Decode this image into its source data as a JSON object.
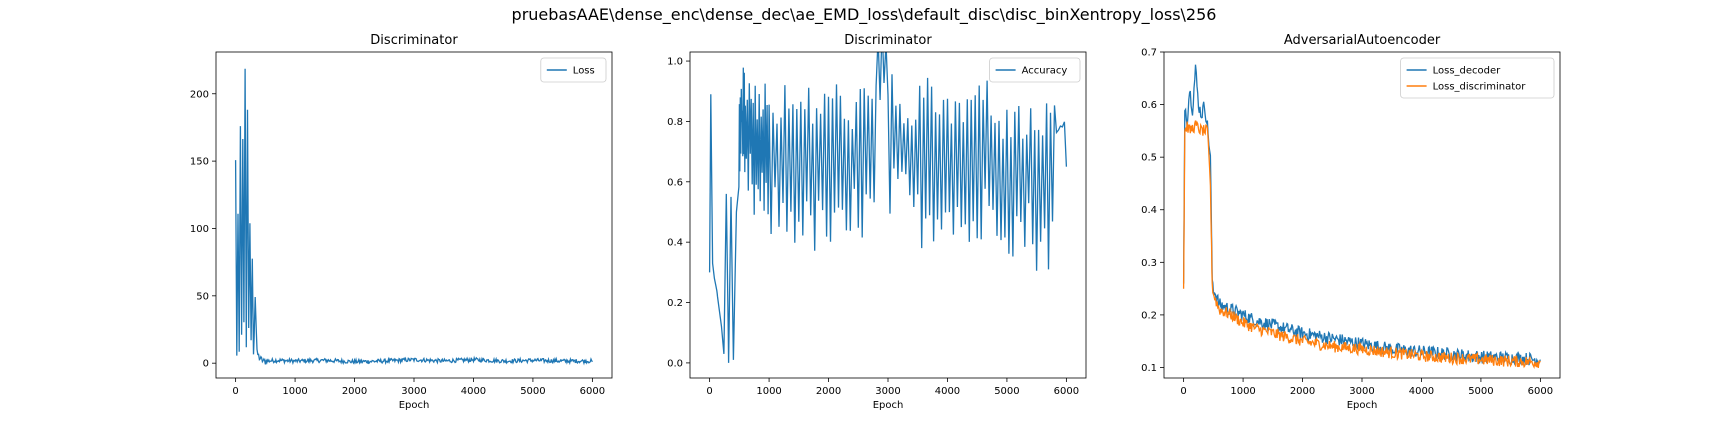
{
  "figure": {
    "suptitle": "pruebasAAE\\dense_enc\\dense_dec\\ae_EMD_loss\\default_disc\\disc_binXentropy_loss\\256"
  },
  "colors": {
    "blue": "#1f77b4",
    "orange": "#ff7f0e",
    "axis": "#000000"
  },
  "chart_data": [
    {
      "type": "line",
      "title": "Discriminator",
      "xlabel": "Epoch",
      "ylabel": "",
      "xlim": [
        -330,
        6330
      ],
      "ylim": [
        -11,
        231
      ],
      "xticks": [
        0,
        1000,
        2000,
        3000,
        4000,
        5000,
        6000
      ],
      "xtick_labels": [
        "0",
        "1000",
        "2000",
        "3000",
        "4000",
        "5000",
        "6000"
      ],
      "yticks": [
        0,
        50,
        100,
        150,
        200
      ],
      "ytick_labels": [
        "0",
        "50",
        "100",
        "150",
        "200"
      ],
      "legend_position": "top-right",
      "grid": false,
      "series": [
        {
          "name": "Loss",
          "color": "#1f77b4",
          "x": [
            0,
            20,
            40,
            60,
            80,
            100,
            120,
            140,
            160,
            180,
            200,
            220,
            240,
            260,
            280,
            300,
            330,
            360,
            400,
            450,
            500,
            700,
            1000,
            1500,
            2000,
            2500,
            3000,
            3500,
            4000,
            4500,
            5000,
            5500,
            6000
          ],
          "y": [
            150,
            5,
            110,
            10,
            175,
            20,
            165,
            30,
            220,
            10,
            190,
            25,
            105,
            15,
            78,
            5,
            50,
            8,
            4,
            2,
            1,
            1.5,
            1,
            1.5,
            0.5,
            1,
            2,
            1,
            2,
            1,
            1.5,
            1,
            1
          ]
        }
      ]
    },
    {
      "type": "line",
      "title": "Discriminator",
      "xlabel": "Epoch",
      "ylabel": "",
      "xlim": [
        -330,
        6330
      ],
      "ylim": [
        -0.05,
        1.03
      ],
      "xticks": [
        0,
        1000,
        2000,
        3000,
        4000,
        5000,
        6000
      ],
      "xtick_labels": [
        "0",
        "1000",
        "2000",
        "3000",
        "4000",
        "5000",
        "6000"
      ],
      "yticks": [
        0.0,
        0.2,
        0.4,
        0.6,
        0.8,
        1.0
      ],
      "ytick_labels": [
        "0.0",
        "0.2",
        "0.4",
        "0.6",
        "0.8",
        "1.0"
      ],
      "legend_position": "top-right",
      "grid": false,
      "series": [
        {
          "name": "Accuracy",
          "color": "#1f77b4",
          "x": [
            0,
            20,
            50,
            80,
            120,
            160,
            200,
            240,
            280,
            320,
            360,
            400,
            450,
            500,
            550,
            600,
            700,
            800,
            900,
            1000,
            1200,
            1400,
            1600,
            1800,
            2000,
            2200,
            2400,
            2600,
            2800,
            3000,
            3200,
            3400,
            3600,
            3800,
            4000,
            4200,
            4400,
            4600,
            4800,
            5000,
            5200,
            5400,
            5600,
            5800,
            6000
          ],
          "y": [
            0.3,
            0.89,
            0.33,
            0.28,
            0.24,
            0.18,
            0.12,
            0.03,
            0.56,
            0.0,
            0.55,
            0.01,
            0.5,
            0.6,
            0.98,
            0.5,
            0.97,
            0.45,
            0.95,
            0.4,
            0.93,
            0.38,
            0.92,
            0.35,
            0.94,
            0.33,
            0.92,
            0.4,
            0.93,
            0.96,
            0.45,
            0.92,
            0.38,
            0.95,
            0.42,
            0.9,
            0.35,
            0.96,
            0.4,
            0.88,
            0.35,
            0.86,
            0.3,
            0.88,
            0.65
          ]
        }
      ]
    },
    {
      "type": "line",
      "title": "AdversarialAutoencoder",
      "xlabel": "Epoch",
      "ylabel": "",
      "xlim": [
        -330,
        6330
      ],
      "ylim": [
        0.08,
        0.7
      ],
      "xticks": [
        0,
        1000,
        2000,
        3000,
        4000,
        5000,
        6000
      ],
      "xtick_labels": [
        "0",
        "1000",
        "2000",
        "3000",
        "4000",
        "5000",
        "6000"
      ],
      "yticks": [
        0.1,
        0.2,
        0.3,
        0.4,
        0.5,
        0.6,
        0.7
      ],
      "ytick_labels": [
        "0.1",
        "0.2",
        "0.3",
        "0.4",
        "0.5",
        "0.6",
        "0.7"
      ],
      "legend_position": "top-right",
      "grid": false,
      "series": [
        {
          "name": "Loss_decoder",
          "color": "#1f77b4",
          "x": [
            0,
            20,
            60,
            100,
            150,
            200,
            250,
            300,
            350,
            400,
            450,
            470,
            480,
            500,
            600,
            800,
            1000,
            1200,
            1500,
            2000,
            2500,
            3000,
            3500,
            4000,
            4500,
            5000,
            5500,
            6000
          ],
          "y": [
            0.25,
            0.6,
            0.57,
            0.63,
            0.59,
            0.67,
            0.6,
            0.58,
            0.6,
            0.56,
            0.5,
            0.35,
            0.27,
            0.25,
            0.22,
            0.21,
            0.2,
            0.19,
            0.18,
            0.165,
            0.155,
            0.145,
            0.135,
            0.13,
            0.125,
            0.12,
            0.118,
            0.115
          ]
        },
        {
          "name": "Loss_discriminator",
          "color": "#ff7f0e",
          "x": [
            0,
            20,
            60,
            100,
            200,
            300,
            400,
            450,
            470,
            480,
            500,
            600,
            800,
            1000,
            1200,
            1500,
            2000,
            2500,
            3000,
            3500,
            4000,
            4500,
            5000,
            5500,
            6000
          ],
          "y": [
            0.25,
            0.55,
            0.56,
            0.55,
            0.56,
            0.55,
            0.55,
            0.45,
            0.32,
            0.26,
            0.24,
            0.21,
            0.2,
            0.185,
            0.175,
            0.165,
            0.15,
            0.14,
            0.135,
            0.128,
            0.122,
            0.118,
            0.115,
            0.112,
            0.11
          ]
        }
      ]
    }
  ]
}
